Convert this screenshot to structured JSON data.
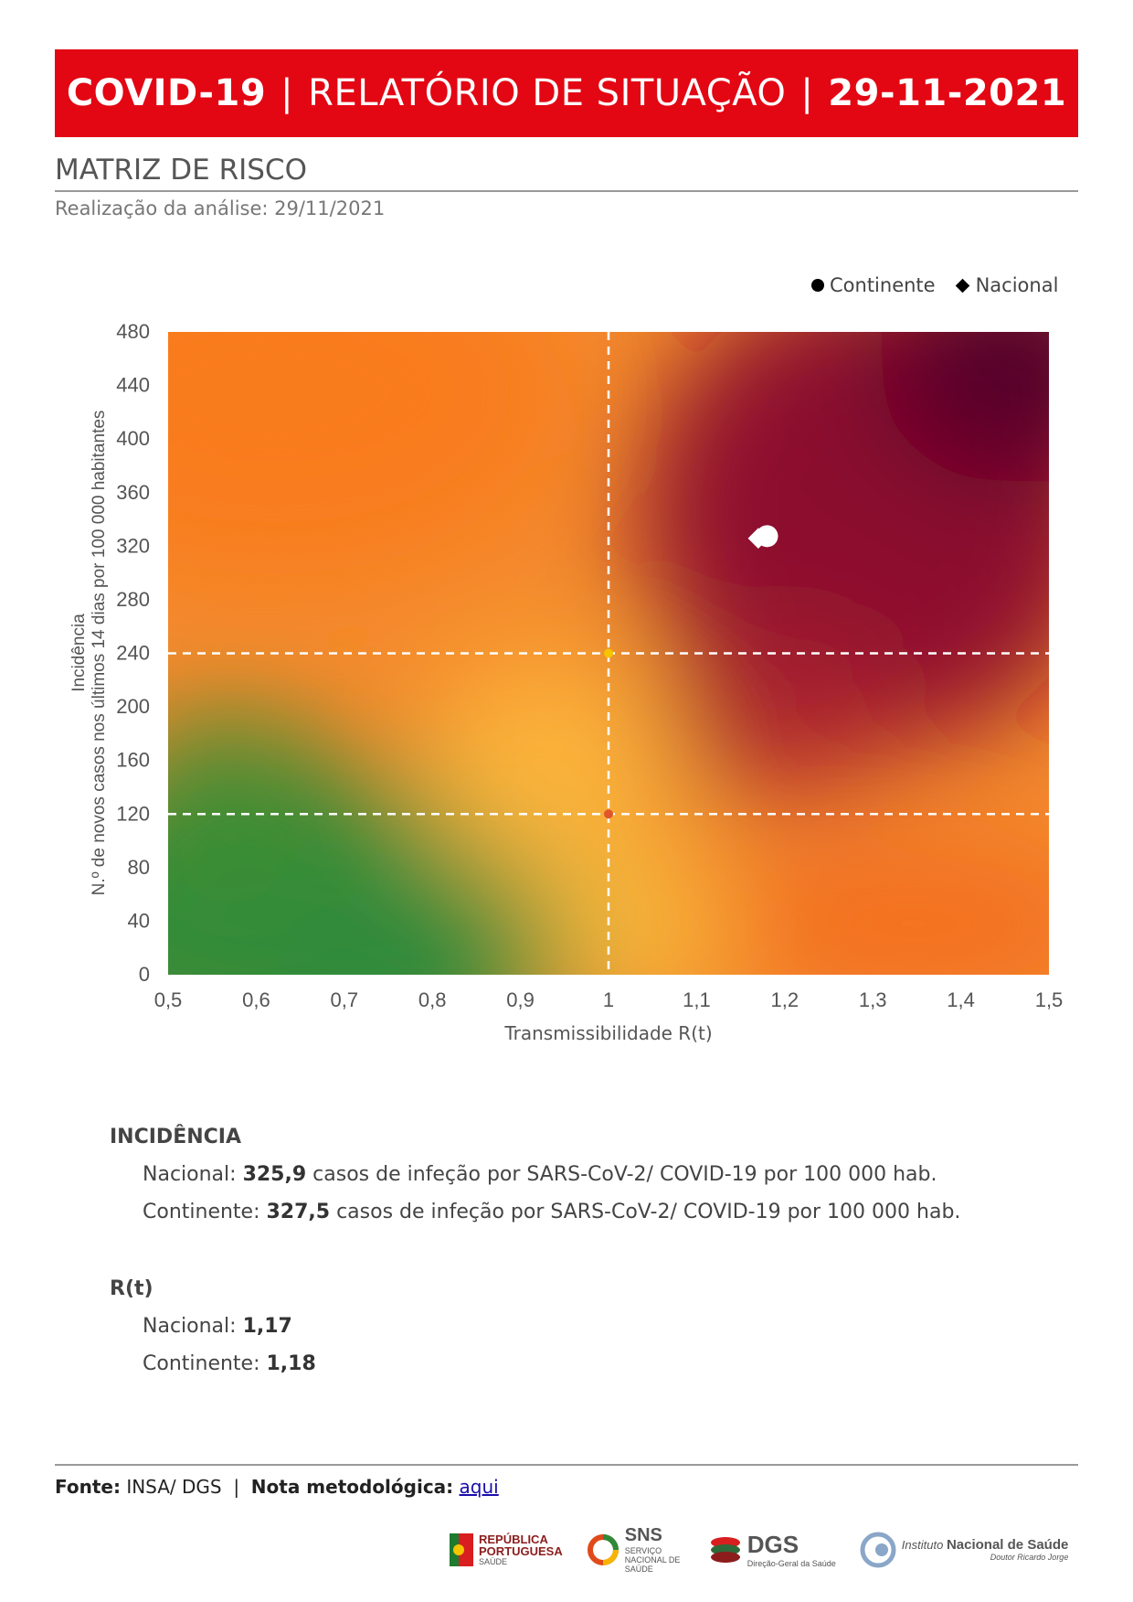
{
  "header": {
    "part1": "COVID-19",
    "part2": "RELATÓRIO DE SITUAÇÃO",
    "part3": "29-11-2021",
    "separator": "|"
  },
  "section": {
    "title": "MATRIZ DE RISCO",
    "analysis_date": "Realização da análise: 29/11/2021"
  },
  "legend": [
    {
      "label": "Continente",
      "marker": "circle"
    },
    {
      "label": "Nacional",
      "marker": "diamond"
    }
  ],
  "chart_data": {
    "type": "scatter",
    "xlabel": "Transmissibilidade R(t)",
    "ylabel_line1": "Incidência",
    "ylabel_line2": "N.º de novos casos nos últimos 14 dias por 100 000 habitantes",
    "xlim": [
      0.5,
      1.5
    ],
    "ylim": [
      0,
      480
    ],
    "x_ticks": [
      "0,5",
      "0,6",
      "0,7",
      "0,8",
      "0,9",
      "1",
      "1,1",
      "1,2",
      "1,3",
      "1,4",
      "1,5"
    ],
    "y_ticks": [
      "0",
      "40",
      "80",
      "120",
      "160",
      "200",
      "240",
      "280",
      "320",
      "360",
      "400",
      "440",
      "480"
    ],
    "threshold_x": 1,
    "threshold_y": [
      120,
      240
    ],
    "legend_position": "top-right",
    "series": [
      {
        "name": "Continente",
        "marker": "circle",
        "points": [
          {
            "x": 1.18,
            "y": 327.5
          }
        ]
      },
      {
        "name": "Nacional",
        "marker": "diamond",
        "points": [
          {
            "x": 1.17,
            "y": 325.9
          }
        ]
      }
    ]
  },
  "incidence": {
    "heading": "INCIDÊNCIA",
    "nacional_label": "Nacional:",
    "nacional_value": "325,9",
    "nacional_rest": " casos de infeção por SARS-CoV-2/ COVID-19 por 100 000 hab.",
    "continente_label": "Continente:",
    "continente_value": "327,5",
    "continente_rest": " casos de infeção por SARS-CoV-2/ COVID-19 por 100 000 hab."
  },
  "rt": {
    "heading": "R(t)",
    "nacional_label": "Nacional:",
    "nacional_value": "1,17",
    "continente_label": "Continente:",
    "continente_value": "1,18"
  },
  "footer": {
    "source_label": "Fonte:",
    "source_value": "INSA/ DGS",
    "divider": "|",
    "note_label": "Nota metodológica:",
    "note_link": "aqui"
  },
  "logos": {
    "republica_line1": "REPÚBLICA",
    "republica_line2": "PORTUGUESA",
    "republica_sub": "SAÚDE",
    "sns": "SNS",
    "sns_sub": "SERVIÇO NACIONAL DE SAÚDE",
    "dgs": "DGS",
    "dgs_sub": "Direção-Geral da Saúde",
    "insa_prefix": "Instituto",
    "insa_name": "Nacional de Saúde",
    "insa_sub": "Doutor Ricardo Jorge"
  },
  "colors": {
    "banner": "#e30613",
    "green": "#2e8b3a",
    "yellow": "#f6b63a",
    "orange": "#f47a22",
    "dark_red": "#5a002a"
  }
}
